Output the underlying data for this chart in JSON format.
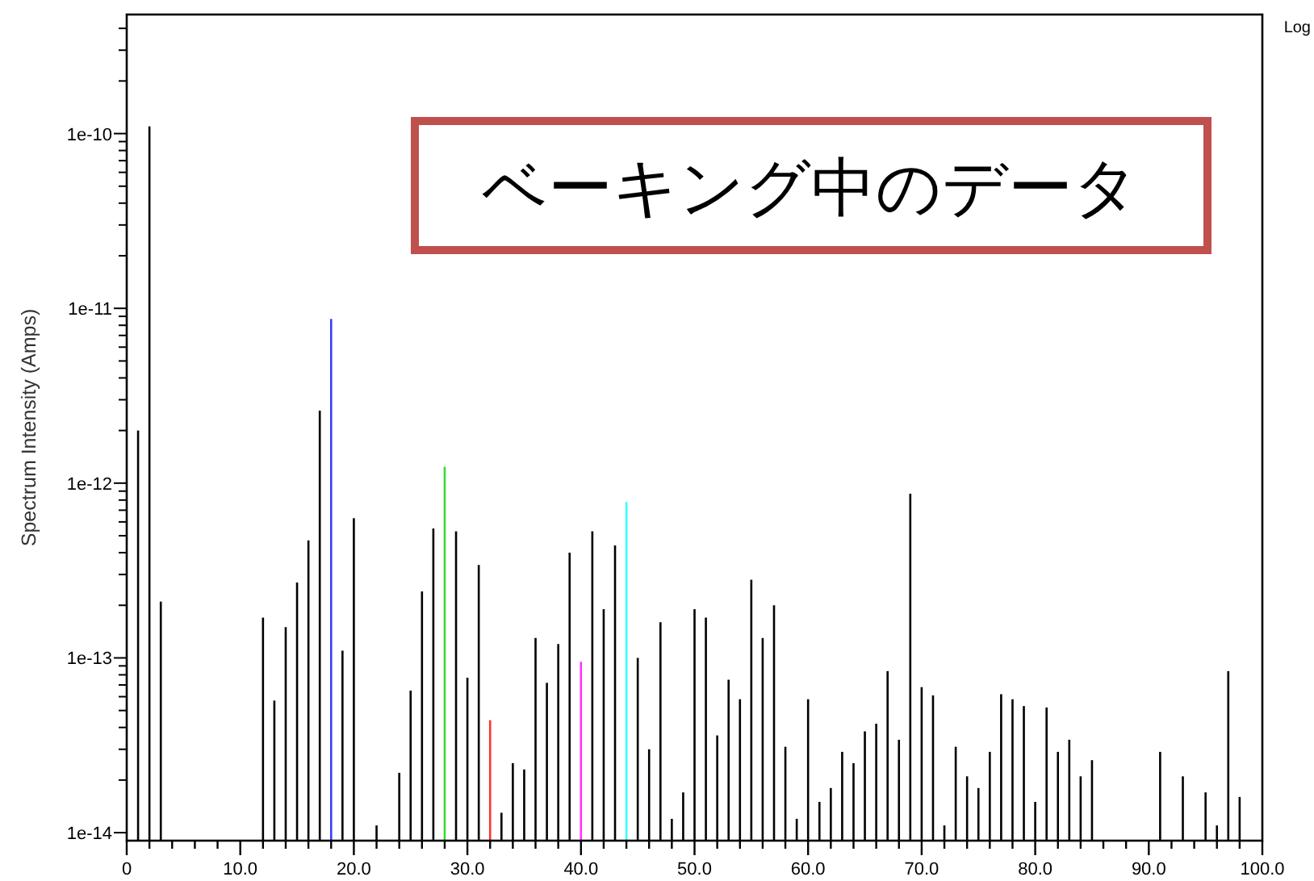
{
  "chart_data": {
    "type": "bar",
    "ylabel": "Spectrum Intensity  (Amps)",
    "log": true,
    "annotations": [
      "ベーキング中のデータ",
      "Log"
    ],
    "xlim": [
      0,
      100
    ],
    "xticks": [
      {
        "value": 0,
        "label": "0"
      },
      {
        "value": 2,
        "label": null
      },
      {
        "value": 4,
        "label": null
      },
      {
        "value": 6,
        "label": null
      },
      {
        "value": 8,
        "label": null
      },
      {
        "value": 10,
        "label": "10.0"
      },
      {
        "value": 12,
        "label": null
      },
      {
        "value": 14,
        "label": null
      },
      {
        "value": 16,
        "label": null
      },
      {
        "value": 18,
        "label": null
      },
      {
        "value": 20,
        "label": "20.0"
      },
      {
        "value": 22,
        "label": null
      },
      {
        "value": 24,
        "label": null
      },
      {
        "value": 26,
        "label": null
      },
      {
        "value": 28,
        "label": null
      },
      {
        "value": 30,
        "label": "30.0"
      },
      {
        "value": 32,
        "label": null
      },
      {
        "value": 34,
        "label": null
      },
      {
        "value": 36,
        "label": null
      },
      {
        "value": 38,
        "label": null
      },
      {
        "value": 40,
        "label": "40.0"
      },
      {
        "value": 42,
        "label": null
      },
      {
        "value": 44,
        "label": null
      },
      {
        "value": 46,
        "label": null
      },
      {
        "value": 48,
        "label": null
      },
      {
        "value": 50,
        "label": "50.0"
      },
      {
        "value": 52,
        "label": null
      },
      {
        "value": 54,
        "label": null
      },
      {
        "value": 56,
        "label": null
      },
      {
        "value": 58,
        "label": null
      },
      {
        "value": 60,
        "label": "60.0"
      },
      {
        "value": 62,
        "label": null
      },
      {
        "value": 64,
        "label": null
      },
      {
        "value": 66,
        "label": null
      },
      {
        "value": 68,
        "label": null
      },
      {
        "value": 70,
        "label": "70.0"
      },
      {
        "value": 72,
        "label": null
      },
      {
        "value": 74,
        "label": null
      },
      {
        "value": 76,
        "label": null
      },
      {
        "value": 78,
        "label": null
      },
      {
        "value": 80,
        "label": "80.0"
      },
      {
        "value": 82,
        "label": null
      },
      {
        "value": 84,
        "label": null
      },
      {
        "value": 86,
        "label": null
      },
      {
        "value": 88,
        "label": null
      },
      {
        "value": 90,
        "label": "90.0"
      },
      {
        "value": 92,
        "label": null
      },
      {
        "value": 94,
        "label": null
      },
      {
        "value": 96,
        "label": null
      },
      {
        "value": 98,
        "label": null
      },
      {
        "value": 100,
        "label": "100.0"
      }
    ],
    "ylim": [
      9e-15,
      4.8e-10
    ],
    "yticks": [
      {
        "value": 1e-14,
        "label": "1e-14"
      },
      {
        "value": 2e-14,
        "label": null
      },
      {
        "value": 3e-14,
        "label": null
      },
      {
        "value": 4e-14,
        "label": null
      },
      {
        "value": 5e-14,
        "label": null
      },
      {
        "value": 6e-14,
        "label": null
      },
      {
        "value": 7e-14,
        "label": null
      },
      {
        "value": 8e-14,
        "label": null
      },
      {
        "value": 9e-14,
        "label": null
      },
      {
        "value": 1e-13,
        "label": "1e-13"
      },
      {
        "value": 2e-13,
        "label": null
      },
      {
        "value": 3e-13,
        "label": null
      },
      {
        "value": 4e-13,
        "label": null
      },
      {
        "value": 5e-13,
        "label": null
      },
      {
        "value": 6e-13,
        "label": null
      },
      {
        "value": 7e-13,
        "label": null
      },
      {
        "value": 8e-13,
        "label": null
      },
      {
        "value": 9e-13,
        "label": null
      },
      {
        "value": 1e-12,
        "label": "1e-12"
      },
      {
        "value": 2e-12,
        "label": null
      },
      {
        "value": 3e-12,
        "label": null
      },
      {
        "value": 4e-12,
        "label": null
      },
      {
        "value": 5e-12,
        "label": null
      },
      {
        "value": 6e-12,
        "label": null
      },
      {
        "value": 7e-12,
        "label": null
      },
      {
        "value": 8e-12,
        "label": null
      },
      {
        "value": 9e-12,
        "label": null
      },
      {
        "value": 1e-11,
        "label": "1e-11"
      },
      {
        "value": 2e-11,
        "label": null
      },
      {
        "value": 3e-11,
        "label": null
      },
      {
        "value": 4e-11,
        "label": null
      },
      {
        "value": 5e-11,
        "label": null
      },
      {
        "value": 6e-11,
        "label": null
      },
      {
        "value": 7e-11,
        "label": null
      },
      {
        "value": 8e-11,
        "label": null
      },
      {
        "value": 9e-11,
        "label": null
      },
      {
        "value": 1e-10,
        "label": "1e-10"
      },
      {
        "value": 2e-10,
        "label": null
      },
      {
        "value": 3e-10,
        "label": null
      },
      {
        "value": 4e-10,
        "label": null
      }
    ],
    "series": [
      {
        "color": "#000000",
        "x": [
          1,
          2,
          3,
          12,
          13,
          14,
          15,
          16,
          17,
          19,
          20,
          22,
          24,
          25,
          26,
          27,
          29,
          30,
          31,
          33,
          34,
          35,
          36,
          37,
          38,
          39,
          41,
          42,
          43,
          45,
          46,
          47,
          48,
          49,
          50,
          51,
          52,
          53,
          54,
          55,
          56,
          57,
          58,
          59,
          60,
          61,
          62,
          63,
          64,
          65,
          66,
          67,
          68,
          69,
          70,
          71,
          72,
          73,
          74,
          75,
          76,
          77,
          78,
          79,
          80,
          81,
          82,
          83,
          84,
          85,
          91,
          93,
          95,
          96,
          97,
          98
        ],
        "values": [
          2e-12,
          1.1e-10,
          2.1e-13,
          1.7e-13,
          5.7e-14,
          1.5e-13,
          2.7e-13,
          4.7e-13,
          2.6e-12,
          1.1e-13,
          6.3e-13,
          1.1e-14,
          2.2e-14,
          6.5e-14,
          2.4e-13,
          5.5e-13,
          5.3e-13,
          7.7e-14,
          3.4e-13,
          1.3e-14,
          2.5e-14,
          2.3e-14,
          1.3e-13,
          7.2e-14,
          1.2e-13,
          4e-13,
          5.3e-13,
          1.9e-13,
          4.4e-13,
          1e-13,
          3e-14,
          1.6e-13,
          1.2e-14,
          1.7e-14,
          1.9e-13,
          1.7e-13,
          3.6e-14,
          7.5e-14,
          5.8e-14,
          2.8e-13,
          1.3e-13,
          2e-13,
          3.1e-14,
          1.2e-14,
          5.8e-14,
          1.5e-14,
          1.8e-14,
          2.9e-14,
          2.5e-14,
          3.8e-14,
          4.2e-14,
          8.4e-14,
          3.4e-14,
          8.7e-13,
          6.8e-14,
          6.1e-14,
          1.1e-14,
          3.1e-14,
          2.1e-14,
          1.8e-14,
          2.9e-14,
          6.2e-14,
          5.8e-14,
          5.3e-14,
          1.5e-14,
          5.2e-14,
          2.9e-14,
          3.4e-14,
          2.1e-14,
          2.6e-14,
          2.9e-14,
          2.1e-14,
          1.7e-14,
          1.1e-14,
          8.4e-14,
          1.6e-14
        ]
      },
      {
        "color": "#3b3bff",
        "x": [
          18
        ],
        "values": [
          8.7e-12
        ]
      },
      {
        "color": "#33dd33",
        "x": [
          28
        ],
        "values": [
          1.24e-12
        ]
      },
      {
        "color": "#ff3333",
        "x": [
          32
        ],
        "values": [
          4.4e-14
        ]
      },
      {
        "color": "#ff33ff",
        "x": [
          40
        ],
        "values": [
          9.5e-14
        ]
      },
      {
        "color": "#33ffff",
        "x": [
          44
        ],
        "values": [
          7.8e-13
        ]
      }
    ]
  }
}
